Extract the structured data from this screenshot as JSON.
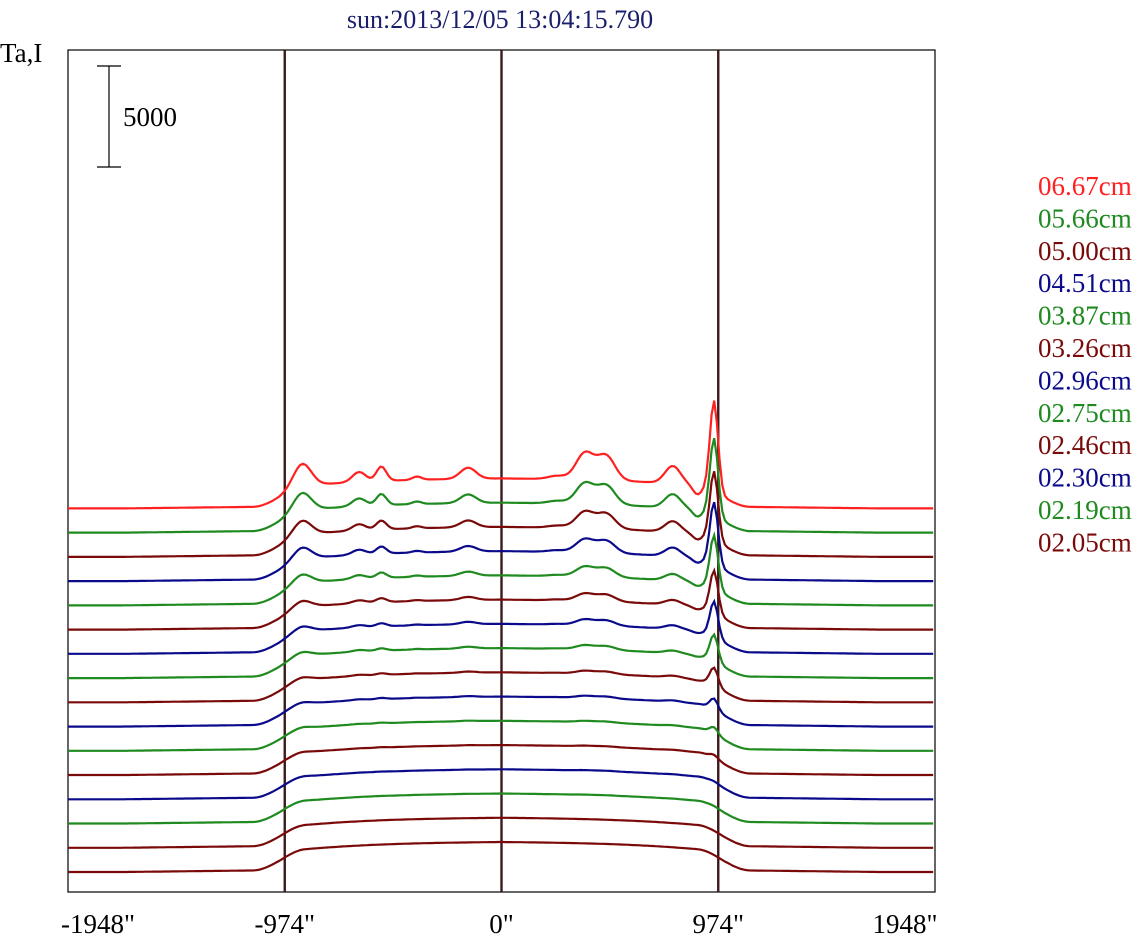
{
  "chart_data": {
    "type": "line",
    "title": "sun:2013/12/05 13:04:15.790",
    "ylabel": "Ta,I",
    "xlabel": "",
    "x_ticks": [
      {
        "value": -1948,
        "label": "-1948\""
      },
      {
        "value": -974,
        "label": "-974\""
      },
      {
        "value": 0,
        "label": "0\""
      },
      {
        "value": 974,
        "label": "974\""
      },
      {
        "value": 1948,
        "label": "1948\""
      }
    ],
    "xlim": [
      -1948,
      1948
    ],
    "vertical_markers": [
      -974,
      0,
      974
    ],
    "scale_bar": {
      "value": 5000,
      "label": "5000"
    },
    "offset_per_trace": 1200,
    "legend_position": "right",
    "title_color": "#1a1f6b",
    "colors": {
      "red": "#ff2020",
      "green": "#1f8a1f",
      "darkred": "#7a0a0a",
      "blue": "#0a0a8a",
      "marker": "#3a1a1a"
    },
    "series": [
      {
        "name": "06.67cm",
        "color": "#ff2020",
        "profile": "active",
        "active_scale": 1.0,
        "spike": 8200,
        "legend": true
      },
      {
        "name": "05.66cm",
        "color": "#1f8a1f",
        "profile": "active",
        "active_scale": 0.78,
        "spike": 7000,
        "legend": true
      },
      {
        "name": "05.00cm",
        "color": "#7a0a0a",
        "profile": "active",
        "active_scale": 0.62,
        "spike": 6200,
        "legend": true
      },
      {
        "name": "04.51cm",
        "color": "#0a0a8a",
        "profile": "active",
        "active_scale": 0.5,
        "spike": 5600,
        "legend": true
      },
      {
        "name": "03.87cm",
        "color": "#1f8a1f",
        "profile": "active",
        "active_scale": 0.38,
        "spike": 4800,
        "legend": true
      },
      {
        "name": "03.26cm",
        "color": "#7a0a0a",
        "profile": "active",
        "active_scale": 0.28,
        "spike": 3800,
        "legend": true
      },
      {
        "name": "02.96cm",
        "color": "#0a0a8a",
        "profile": "active",
        "active_scale": 0.22,
        "spike": 3200,
        "legend": true
      },
      {
        "name": "02.75cm",
        "color": "#1f8a1f",
        "profile": "active",
        "active_scale": 0.16,
        "spike": 2400,
        "legend": true
      },
      {
        "name": "02.46cm",
        "color": "#7a0a0a",
        "profile": "active",
        "active_scale": 0.11,
        "spike": 1600,
        "legend": true
      },
      {
        "name": "02.30cm",
        "color": "#0a0a8a",
        "profile": "active",
        "active_scale": 0.08,
        "spike": 1000,
        "legend": true
      },
      {
        "name": "02.19cm",
        "color": "#1f8a1f",
        "profile": "active",
        "active_scale": 0.05,
        "spike": 600,
        "legend": true
      },
      {
        "name": "02.05cm",
        "color": "#7a0a0a",
        "profile": "active",
        "active_scale": 0.03,
        "spike": 300,
        "legend": true
      },
      {
        "name": "",
        "color": "#0a0a8a",
        "profile": "quiet",
        "active_scale": 0.02,
        "spike": 100,
        "legend": false
      },
      {
        "name": "",
        "color": "#1f8a1f",
        "profile": "quiet",
        "active_scale": 0.01,
        "spike": 50,
        "legend": false
      },
      {
        "name": "",
        "color": "#7a0a0a",
        "profile": "quiet",
        "active_scale": 0.0,
        "spike": 0,
        "legend": false
      },
      {
        "name": "",
        "color": "#7a0a0a",
        "profile": "quiet",
        "active_scale": 0.0,
        "spike": 0,
        "legend": false
      }
    ]
  }
}
